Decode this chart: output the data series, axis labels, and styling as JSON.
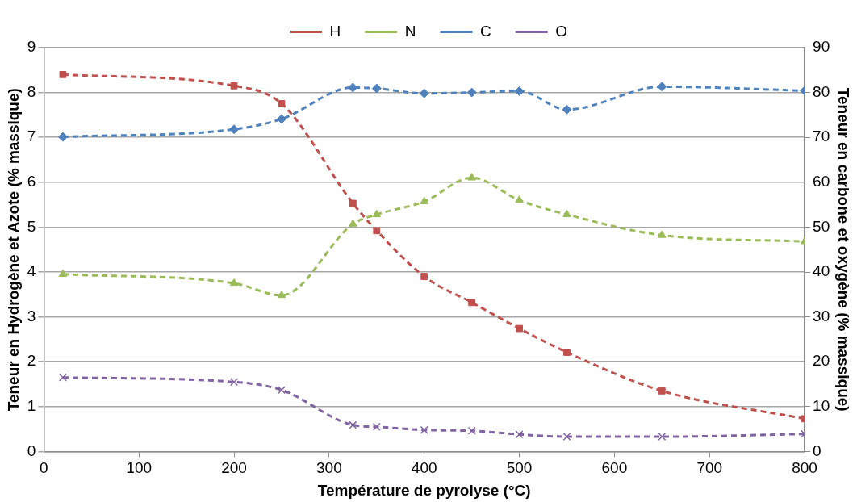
{
  "chart_data": {
    "type": "line",
    "xlabel": "Température de pyrolyse (°C)",
    "ylabel": "Teneur en Hydrogène et Azote (% massique)",
    "y2label": "Teneur en carbone et oxygène (% massique)",
    "x": [
      20,
      200,
      250,
      325,
      350,
      400,
      450,
      500,
      550,
      650,
      800
    ],
    "xlim": [
      0,
      800
    ],
    "xticks": [
      0,
      100,
      200,
      300,
      400,
      500,
      600,
      700,
      800
    ],
    "ylim": [
      0,
      9
    ],
    "yticks": [
      0,
      1,
      2,
      3,
      4,
      5,
      6,
      7,
      8,
      9
    ],
    "y2lim": [
      0,
      90
    ],
    "y2ticks": [
      0,
      10,
      20,
      30,
      40,
      50,
      60,
      70,
      80,
      90
    ],
    "grid": "y",
    "legend": "top",
    "line_style": "dashed",
    "series": [
      {
        "name": "H",
        "color": "#c0504d",
        "marker": "square",
        "values": [
          8.4,
          8.15,
          7.75,
          5.53,
          4.92,
          3.9,
          3.32,
          2.74,
          2.21,
          1.35,
          0.73
        ]
      },
      {
        "name": "N",
        "color": "#9bbb59",
        "marker": "triangle",
        "values": [
          3.95,
          3.75,
          3.48,
          5.07,
          5.28,
          5.57,
          6.1,
          5.6,
          5.28,
          4.82,
          4.68
        ]
      },
      {
        "name": "C",
        "color": "#4f81bd",
        "marker": "diamond",
        "axis": "y2",
        "values": [
          70.1,
          71.8,
          74.1,
          81.1,
          80.9,
          79.8,
          80.0,
          80.3,
          76.2,
          81.3,
          80.4
        ]
      },
      {
        "name": "O",
        "color": "#8064a2",
        "marker": "cross",
        "axis": "y2",
        "values": [
          16.5,
          15.5,
          13.7,
          5.9,
          5.5,
          4.8,
          4.6,
          3.8,
          3.3,
          3.3,
          3.9
        ]
      }
    ]
  }
}
